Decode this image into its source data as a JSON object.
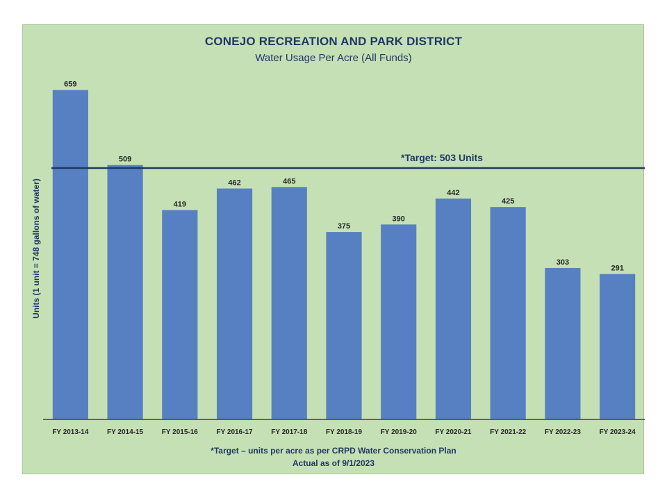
{
  "chart_data": {
    "type": "bar",
    "title": "CONEJO RECREATION AND PARK DISTRICT",
    "subtitle": "Water Usage Per Acre (All Funds)",
    "xlabel": "",
    "ylabel": "Units (1 unit = 748 gallons of water)",
    "categories": [
      "FY 2013-14",
      "FY 2014-15",
      "FY 2015-16",
      "FY 2016-17",
      "FY 2017-18",
      "FY 2018-19",
      "FY 2019-20",
      "FY 2020-21",
      "FY 2021-22",
      "FY 2022-23",
      "FY 2023-24"
    ],
    "values": [
      659,
      509,
      419,
      462,
      465,
      375,
      390,
      442,
      425,
      303,
      291
    ],
    "ylim": [
      0,
      660
    ],
    "grid": false,
    "target": {
      "value": 503,
      "label": "*Target: 503 Units"
    },
    "bar_color": "#5680c2",
    "target_line_color": "#1f3864",
    "background_color": "#c5e0b4"
  },
  "notes": {
    "line1": "*Target – units per acre as per CRPD Water Conservation Plan",
    "line2": "Actual as of 9/1/2023"
  }
}
